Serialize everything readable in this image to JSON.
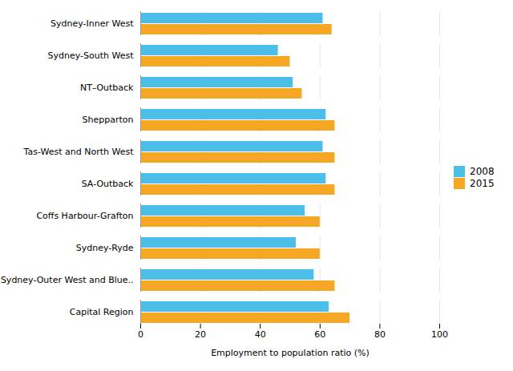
{
  "chart_data": {
    "type": "bar",
    "orientation": "horizontal",
    "categories": [
      "Capital Region",
      "Sydney-Outer West and Blue..",
      "Sydney-Ryde",
      "Coffs Harbour-Grafton",
      "SA-Outback",
      "Tas-West and North West",
      "Shepparton",
      "NT–Outback",
      "Sydney-South West",
      "Sydney-Inner West"
    ],
    "series": [
      {
        "name": "2008",
        "color": "#4BBFE8",
        "values": [
          63,
          58,
          52,
          55,
          62,
          61,
          62,
          51,
          46,
          61
        ]
      },
      {
        "name": "2015",
        "color": "#F5A623",
        "values": [
          70,
          65,
          60,
          60,
          65,
          65,
          65,
          54,
          50,
          64
        ]
      }
    ],
    "xlabel": "Employment to population ratio (%)",
    "xlim": [
      0,
      100
    ],
    "xticks": [
      0,
      20,
      40,
      60,
      80,
      100
    ],
    "grid": true,
    "legend": "right"
  }
}
